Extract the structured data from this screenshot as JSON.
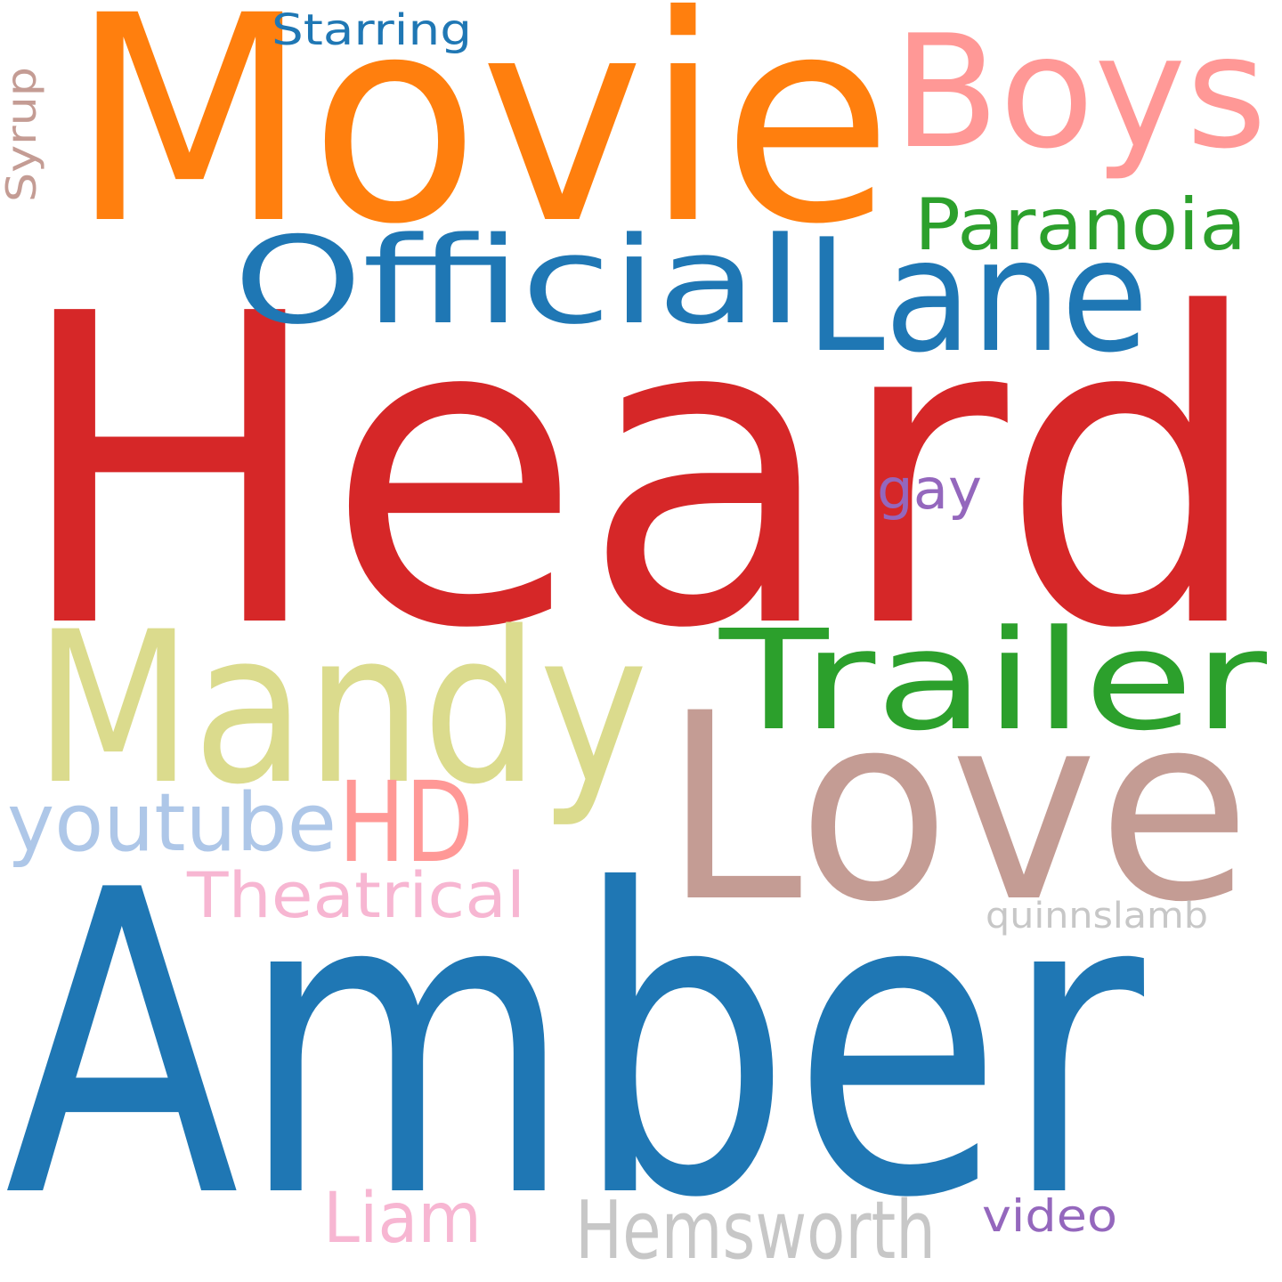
{
  "words": [
    {
      "text": "Heard",
      "color": "#d62728"
    },
    {
      "text": "Amber",
      "color": "#1f77b4"
    },
    {
      "text": "Movie",
      "color": "#ff7f0e"
    },
    {
      "text": "Love",
      "color": "#c49c94"
    },
    {
      "text": "Mandy",
      "color": "#dbdb8d"
    },
    {
      "text": "Boys",
      "color": "#ff9896"
    },
    {
      "text": "Lane",
      "color": "#1f77b4"
    },
    {
      "text": "Official",
      "color": "#1f77b4"
    },
    {
      "text": "Trailer",
      "color": "#2ca02c"
    },
    {
      "text": "HD",
      "color": "#ff9896"
    },
    {
      "text": "Paranoia",
      "color": "#2ca02c"
    },
    {
      "text": "youtube",
      "color": "#aec7e8"
    },
    {
      "text": "Hemsworth",
      "color": "#c7c7c7"
    },
    {
      "text": "Theatrical",
      "color": "#f7b6d2"
    },
    {
      "text": "Liam",
      "color": "#f7b6d2"
    },
    {
      "text": "gay",
      "color": "#9467bd"
    },
    {
      "text": "video",
      "color": "#9467bd"
    },
    {
      "text": "Starring",
      "color": "#1f77b4"
    },
    {
      "text": "quinnslamb",
      "color": "#c7c7c7"
    },
    {
      "text": "Syrup",
      "color": "#c49c94"
    }
  ]
}
